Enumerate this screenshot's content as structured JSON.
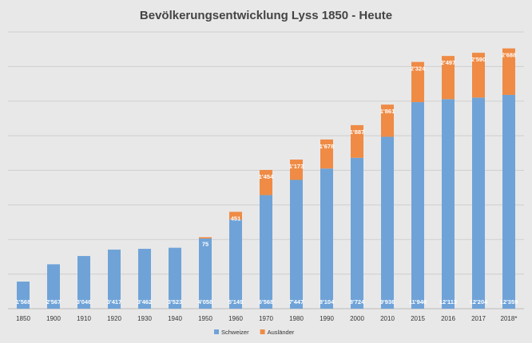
{
  "chart_data": {
    "type": "bar",
    "stacked": true,
    "title": "Bevölkerungsentwicklung Lyss 1850 - Heute",
    "xlabel": "",
    "ylabel": "",
    "ylim": [
      0,
      16000
    ],
    "grid": true,
    "legend": "bottom-center",
    "categories": [
      "1850",
      "1900",
      "1910",
      "1920",
      "1930",
      "1940",
      "1950",
      "1960",
      "1970",
      "1980",
      "1990",
      "2000",
      "2010",
      "2015",
      "2016",
      "2017",
      "2018*"
    ],
    "series": [
      {
        "name": "Schweizer",
        "color": "#6fa3d8",
        "values": [
          1568,
          2567,
          3046,
          3417,
          3462,
          3523,
          4058,
          5149,
          6568,
          7447,
          8104,
          8724,
          9936,
          11940,
          12113,
          12204,
          12359
        ],
        "labels": [
          "1'568",
          "2'567",
          "3'046",
          "3'417",
          "3'462",
          "3'523",
          "4'058",
          "5'149",
          "6'568",
          "7'447",
          "8'104",
          "8'724",
          "9'936",
          "11'940",
          "12'113",
          "12'204",
          "12'359"
        ]
      },
      {
        "name": "Ausländer",
        "color": "#ef8b45",
        "values": [
          0,
          0,
          0,
          0,
          0,
          0,
          75,
          451,
          1454,
          1173,
          1678,
          1887,
          1861,
          2324,
          2497,
          2590,
          2688
        ],
        "labels": [
          "",
          "",
          "",
          "",
          "",
          "",
          "75",
          "451",
          "1'454",
          "1'173",
          "1'678",
          "1'887",
          "1'861",
          "2'324",
          "2'497",
          "2'590",
          "2'688"
        ]
      }
    ]
  }
}
